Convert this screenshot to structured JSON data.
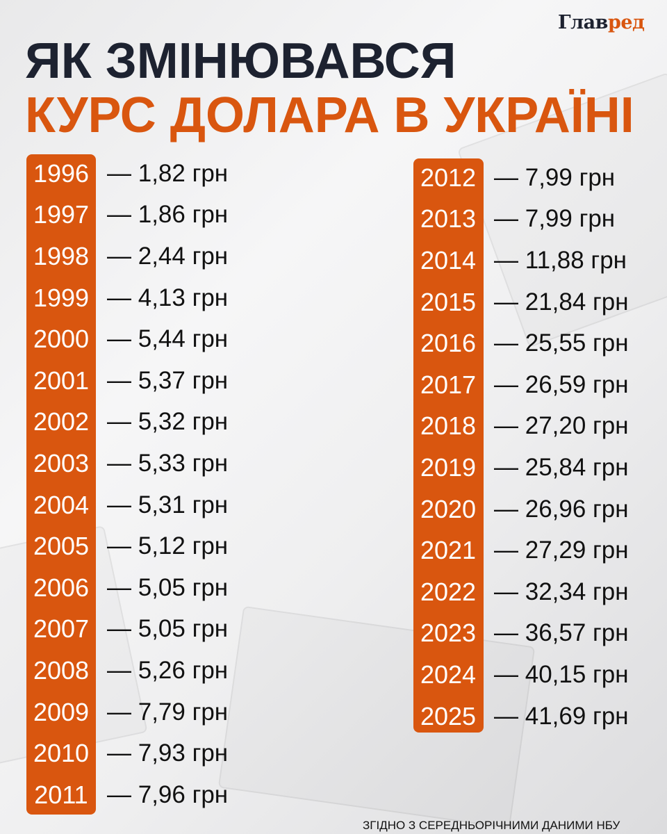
{
  "logo": {
    "part1": "Глав",
    "part2": "ред"
  },
  "title": {
    "line1": "ЯК ЗМІНЮВАВСЯ",
    "line2": "КУРС ДОЛАРА В УКРАЇНІ"
  },
  "left": [
    {
      "year": "1996",
      "value": "— 1,82 грн"
    },
    {
      "year": "1997",
      "value": "— 1,86 грн"
    },
    {
      "year": "1998",
      "value": "— 2,44 грн"
    },
    {
      "year": "1999",
      "value": "— 4,13 грн"
    },
    {
      "year": "2000",
      "value": "— 5,44 грн"
    },
    {
      "year": "2001",
      "value": "— 5,37 грн"
    },
    {
      "year": "2002",
      "value": "— 5,32 грн"
    },
    {
      "year": "2003",
      "value": "— 5,33 грн"
    },
    {
      "year": "2004",
      "value": "— 5,31 грн"
    },
    {
      "year": "2005",
      "value": "— 5,12 грн"
    },
    {
      "year": "2006",
      "value": "— 5,05 грн"
    },
    {
      "year": "2007",
      "value": "— 5,05 грн"
    },
    {
      "year": "2008",
      "value": "— 5,26 грн"
    },
    {
      "year": "2009",
      "value": "— 7,79 грн"
    },
    {
      "year": "2010",
      "value": "— 7,93 грн"
    },
    {
      "year": "2011",
      "value": "— 7,96 грн"
    }
  ],
  "right": [
    {
      "year": "2012",
      "value": "— 7,99 грн"
    },
    {
      "year": "2013",
      "value": "— 7,99 грн"
    },
    {
      "year": "2014",
      "value": "— 11,88 грн"
    },
    {
      "year": "2015",
      "value": "— 21,84 грн"
    },
    {
      "year": "2016",
      "value": "— 25,55 грн"
    },
    {
      "year": "2017",
      "value": "— 26,59 грн"
    },
    {
      "year": "2018",
      "value": "— 27,20 грн"
    },
    {
      "year": "2019",
      "value": "— 25,84 грн"
    },
    {
      "year": "2020",
      "value": "— 26,96 грн"
    },
    {
      "year": "2021",
      "value": "— 27,29 грн"
    },
    {
      "year": "2022",
      "value": "— 32,34 грн"
    },
    {
      "year": "2023",
      "value": "— 36,57 грн"
    },
    {
      "year": "2024",
      "value": "— 40,15 грн"
    },
    {
      "year": "2025",
      "value": "— 41,69 грн"
    }
  ],
  "footer": "ЗГІДНО З СЕРЕДНЬОРІЧНИМИ ДАНИМИ НБУ",
  "colors": {
    "accent": "#d9560f",
    "dark": "#1d2230"
  }
}
